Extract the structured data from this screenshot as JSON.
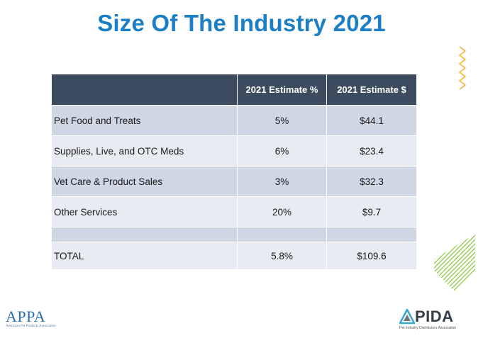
{
  "title": "Size Of The Industry 2021",
  "table": {
    "headers": [
      "",
      "2021 Estimate %",
      "2021 Estimate $"
    ],
    "rows": [
      {
        "label": "Pet Food and Treats",
        "pct": "5%",
        "amount": "$44.1"
      },
      {
        "label": "Supplies, Live, and OTC Meds",
        "pct": "6%",
        "amount": "$23.4"
      },
      {
        "label": "Vet Care & Product Sales",
        "pct": "3%",
        "amount": "$32.3"
      },
      {
        "label": "Other Services",
        "pct": "20%",
        "amount": "$9.7"
      },
      {
        "label": "",
        "pct": "",
        "amount": ""
      },
      {
        "label": "TOTAL",
        "pct": "5.8%",
        "amount": "$109.6"
      }
    ]
  },
  "logos": {
    "left": {
      "mark": "APPA",
      "subtitle": "American Pet Products Association"
    },
    "right": {
      "mark": "PIDA",
      "subtitle": "Pet Industry Distributors Association"
    }
  },
  "colors": {
    "title": "#1a7fc4",
    "header_bg": "#3c4b5e",
    "row_dark": "#cfd6e4",
    "row_light": "#e8ebf1",
    "accent_zigzag": "#f2b233",
    "accent_stripes": "#8cc63f"
  },
  "icons": {
    "zigzag": "zigzag-decoration-icon",
    "stripes": "diagonal-stripes-decoration-icon",
    "pida": "triangle-logo-icon"
  }
}
